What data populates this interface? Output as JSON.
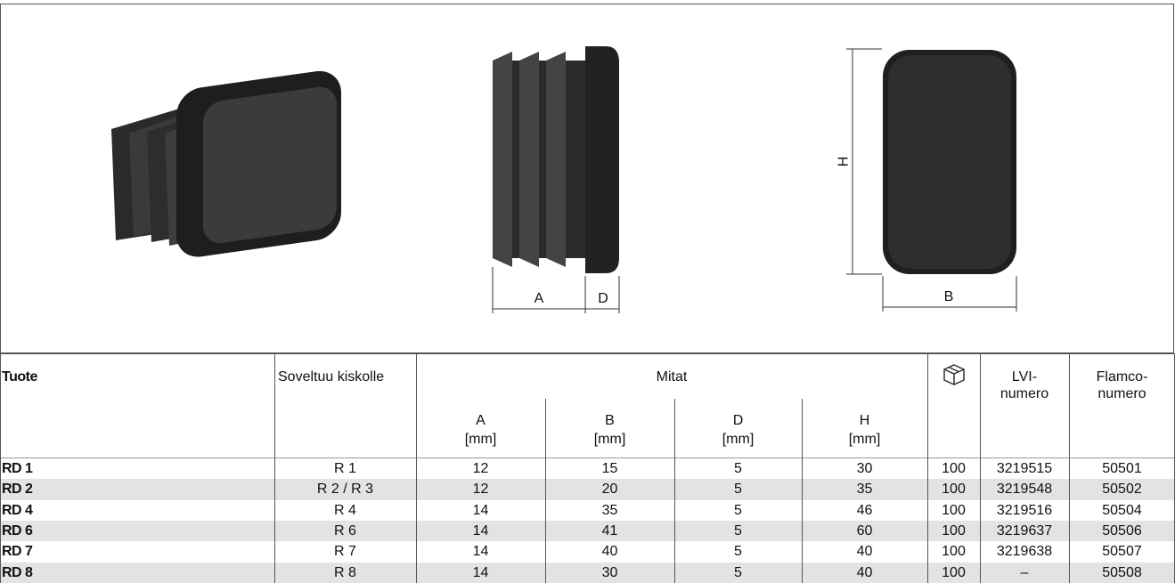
{
  "drawings": {
    "side": {
      "a": "A",
      "d": "D"
    },
    "front": {
      "h": "H",
      "b": "B"
    }
  },
  "table": {
    "headers": {
      "product": "Tuote",
      "fits": "Soveltuu kiskolle",
      "dimensions": "Mitat",
      "a": "A",
      "b": "B",
      "d": "D",
      "h": "H",
      "unit": "[mm]",
      "lvi": "LVI-\nnumero",
      "flamco": "Flamco-\nnumero"
    },
    "rows": [
      [
        "RD 1",
        "R 1",
        12,
        15,
        5,
        30,
        100,
        "3219515",
        "50501"
      ],
      [
        "RD 2",
        "R 2 / R 3",
        12,
        20,
        5,
        35,
        100,
        "3219548",
        "50502"
      ],
      [
        "RD 4",
        "R 4",
        14,
        35,
        5,
        46,
        100,
        "3219516",
        "50504"
      ],
      [
        "RD 6",
        "R 6",
        14,
        41,
        5,
        60,
        100,
        "3219637",
        "50506"
      ],
      [
        "RD 7",
        "R 7",
        14,
        40,
        5,
        40,
        100,
        "3219638",
        "50507"
      ],
      [
        "RD 8",
        "R 8",
        14,
        30,
        5,
        40,
        100,
        "–",
        "50508"
      ]
    ]
  }
}
